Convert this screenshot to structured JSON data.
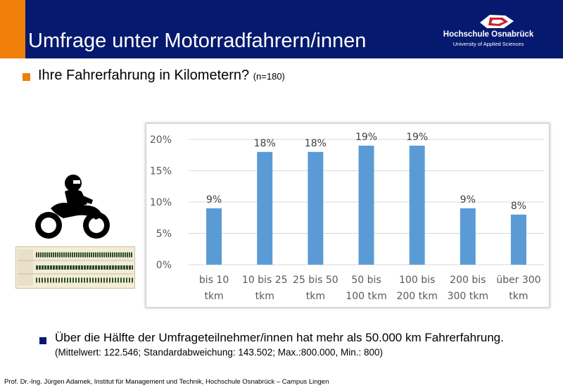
{
  "header": {
    "title": "Umfrage unter Motorradfahrern/innen",
    "logo_name": "Hochschule Osnabrück",
    "logo_sub": "University of Applied Sciences",
    "accent_color": "#f07f09",
    "header_color": "#051a6e"
  },
  "question": {
    "text": "Ihre Fahrerfahrung in Kilometern?",
    "n": "(n=180)"
  },
  "icons": {
    "bullet": "orange-square-bullet",
    "motorcycle": "motorcycle-rider-icon",
    "waveform": "audio-waveform-thumbnail"
  },
  "chart_data": {
    "type": "bar",
    "categories": [
      [
        "bis 10",
        "tkm"
      ],
      [
        "10 bis 25",
        "tkm"
      ],
      [
        "25 bis 50",
        "tkm"
      ],
      [
        "50 bis",
        "100 tkm"
      ],
      [
        "100 bis",
        "200 tkm"
      ],
      [
        "200 bis",
        "300 tkm"
      ],
      [
        "über 300",
        "tkm"
      ]
    ],
    "values": [
      9,
      18,
      18,
      19,
      19,
      9,
      8
    ],
    "data_labels": [
      "9%",
      "18%",
      "18%",
      "19%",
      "19%",
      "9%",
      "8%"
    ],
    "yticks": [
      "0%",
      "5%",
      "10%",
      "15%",
      "20%"
    ],
    "ylim": [
      0,
      20
    ],
    "bar_color": "#5b9bd5",
    "grid": true
  },
  "summary": {
    "text": "Über die Hälfte der Umfrageteilnehmer/innen hat mehr als 50.000 km Fahrerfahrung.",
    "detail": "(Mittelwert: 122.546; Standardabweichung:  143.502; Max.:800.000, Min.: 800)"
  },
  "footer": {
    "text": "Prof. Dr.-Ing. Jürgen Adamek,  Institut für Management und Technik, Hochschule Osnabrück – Campus Lingen"
  }
}
